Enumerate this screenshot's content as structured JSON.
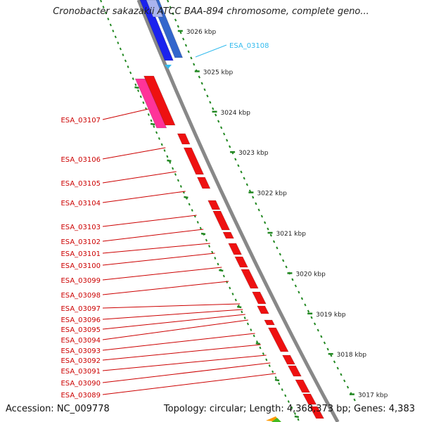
{
  "title": "Cronobacter sakazakii ATCC BAA-894 chromosome, complete geno...",
  "footer": {
    "accession": "Accession: NC_009778",
    "topology": "Topology: circular; Length: 4,368,373 bp; Genes: 4,383"
  },
  "ticks": [
    "3026 kbp",
    "3025 kbp",
    "3024 kbp",
    "3023 kbp",
    "3022 kbp",
    "3021 kbp",
    "3020 kbp",
    "3019 kbp",
    "3018 kbp",
    "3017 kbp"
  ],
  "plus_gene": {
    "label": "ESA_03108",
    "color": "#33bbee"
  },
  "minus_genes": [
    "ESA_03107",
    "ESA_03106",
    "ESA_03105",
    "ESA_03104",
    "ESA_03103",
    "ESA_03102",
    "ESA_03101",
    "ESA_03100",
    "ESA_03099",
    "ESA_03098",
    "ESA_03097",
    "ESA_03096",
    "ESA_03095",
    "ESA_03094",
    "ESA_03093",
    "ESA_03092",
    "ESA_03091",
    "ESA_03090",
    "ESA_03089"
  ],
  "colors": {
    "minus_strand": "#ee1111",
    "minus_label": "#cc0000",
    "plus_strand": "#1a22ee",
    "pink_feature": "#ff3399",
    "backbone": "#888888",
    "tick": "#228822"
  }
}
